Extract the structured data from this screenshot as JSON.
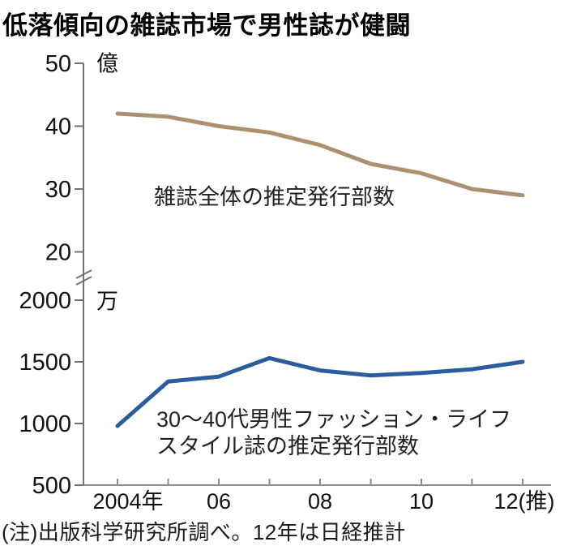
{
  "title": "低落傾向の雑誌市場で男性誌が健闘",
  "note": "(注)出版科学研究所調べ。12年は日経推計",
  "annotations": {
    "top_series_label": "雑誌全体の推定発行部数",
    "bottom_series_label_line1": "30〜40代男性ファッション・ライフ",
    "bottom_series_label_line2": "スタイル誌の推定発行部数"
  },
  "chart_data": {
    "type": "line",
    "panels": "two stacked panels sharing one x-axis, with axis break between them",
    "x": [
      2004,
      2005,
      2006,
      2007,
      2008,
      2009,
      2010,
      2011,
      2012
    ],
    "x_axis": {
      "tick_years": [
        2004,
        2005,
        2006,
        2007,
        2008,
        2009,
        2010,
        2011,
        2012
      ],
      "labels": [
        {
          "year": 2004,
          "text": "2004年"
        },
        {
          "year": 2006,
          "text": "06"
        },
        {
          "year": 2008,
          "text": "08"
        },
        {
          "year": 2010,
          "text": "10"
        },
        {
          "year": 2012,
          "text": "12(推)"
        }
      ]
    },
    "y_axis_top": {
      "unit": "億",
      "ticks": [
        50,
        40,
        30,
        20
      ],
      "min": 20,
      "max": 50
    },
    "y_axis_bottom": {
      "unit": "万",
      "ticks": [
        2000,
        1500,
        1000,
        500
      ],
      "min": 500,
      "max": 2000
    },
    "axis_break": true,
    "grid": false,
    "series": [
      {
        "name": "雑誌全体の推定発行部数",
        "panel": "top",
        "unit": "億",
        "color": "#AB9170",
        "values": [
          42,
          41.5,
          40,
          39,
          37,
          34,
          32.5,
          30,
          29
        ]
      },
      {
        "name": "30〜40代男性ファッション・ライフスタイル誌の推定発行部数",
        "panel": "bottom",
        "unit": "万",
        "color": "#2B5C9D",
        "values": [
          980,
          1340,
          1380,
          1530,
          1430,
          1390,
          1410,
          1440,
          1500
        ]
      }
    ]
  }
}
